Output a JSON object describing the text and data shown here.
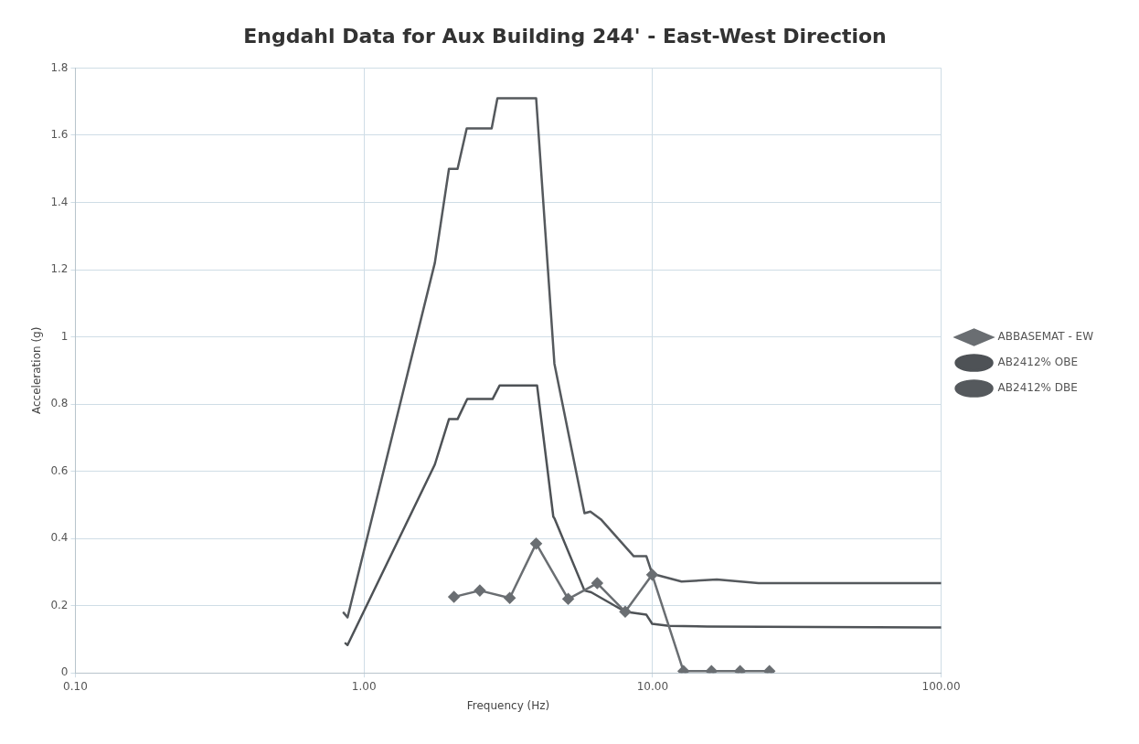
{
  "chart_data": {
    "type": "line",
    "title": "Engdahl Data for Aux Building 244' - East-West Direction",
    "xlabel": "Frequency (Hz)",
    "ylabel": "Acceleration (g)",
    "log": "x",
    "xlim": [
      0.1,
      100
    ],
    "xticks": [
      {
        "value": 0.1,
        "label": "0.10"
      },
      {
        "value": 1,
        "label": "1.00"
      },
      {
        "value": 10,
        "label": "10.00"
      },
      {
        "value": 100,
        "label": "100.00"
      }
    ],
    "ylim": [
      0,
      1.8
    ],
    "yticks": [
      0,
      0.2,
      0.4,
      0.6,
      0.8,
      1,
      1.2,
      1.4,
      1.6,
      1.8
    ],
    "grid": true,
    "legend": "right",
    "line_style": "solid",
    "series": [
      {
        "name": "ABBASEMAT - EW",
        "color": "#6a6e72",
        "marker": "diamond",
        "x": [
          2.05,
          2.52,
          3.2,
          3.95,
          5.1,
          6.43,
          8.04,
          9.97,
          12.8,
          16.0,
          20.1,
          25.4
        ],
        "values": [
          0.226,
          0.245,
          0.223,
          0.385,
          0.22,
          0.267,
          0.182,
          0.292,
          0.005,
          0.005,
          0.005,
          0.005
        ]
      },
      {
        "name": "AB2412% OBE",
        "color": "#4e5256",
        "marker": "none",
        "x": [
          0.863,
          0.877,
          1.76,
          1.97,
          2.11,
          2.28,
          2.79,
          2.95,
          3.98,
          4.53,
          4.57,
          5.81,
          6.13,
          8.04,
          9.52,
          9.97,
          11.4,
          15.5,
          100
        ],
        "values": [
          0.088,
          0.083,
          0.62,
          0.755,
          0.755,
          0.815,
          0.815,
          0.855,
          0.855,
          0.465,
          0.46,
          0.245,
          0.24,
          0.182,
          0.173,
          0.146,
          0.14,
          0.138,
          0.135
        ]
      },
      {
        "name": "AB2412% DBE",
        "color": "#55595d",
        "marker": "none",
        "x": [
          0.85,
          0.877,
          1.76,
          1.97,
          2.11,
          2.27,
          2.77,
          2.9,
          3.95,
          4.57,
          5.81,
          6.09,
          6.62,
          8.61,
          9.52,
          9.97,
          12.6,
          16.7,
          23.3,
          100
        ],
        "values": [
          0.179,
          0.165,
          1.22,
          1.5,
          1.5,
          1.62,
          1.62,
          1.71,
          1.71,
          0.92,
          0.475,
          0.48,
          0.457,
          0.347,
          0.347,
          0.295,
          0.272,
          0.278,
          0.267,
          0.267
        ]
      }
    ]
  }
}
